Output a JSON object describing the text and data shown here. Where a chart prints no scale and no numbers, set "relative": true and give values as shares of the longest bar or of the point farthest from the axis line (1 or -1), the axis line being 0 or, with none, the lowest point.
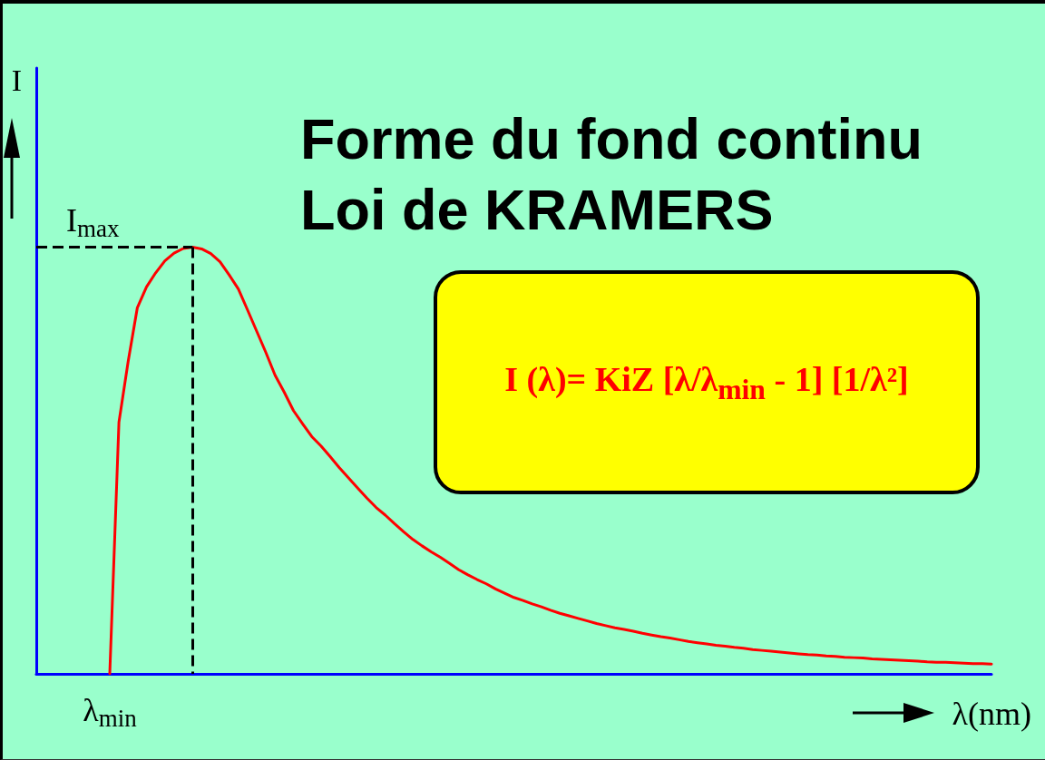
{
  "chart_data": {
    "type": "line",
    "title": "Forme du fond continu",
    "subtitle": "Loi de KRAMERS",
    "xlabel": "λ(nm)",
    "ylabel": "I",
    "relative": true,
    "marker": "none",
    "line_style": "solid",
    "color": "#ff0000",
    "categories": [
      null,
      null,
      null,
      null,
      null,
      null,
      null,
      null,
      null,
      null,
      null,
      null,
      null,
      null,
      null,
      null,
      null,
      null,
      null,
      null,
      null,
      null,
      null,
      null,
      null,
      null,
      null,
      null,
      null,
      null,
      null,
      null,
      null,
      null,
      null,
      null,
      null,
      null,
      null,
      null,
      null,
      null,
      null,
      null,
      null,
      null,
      null,
      null,
      null,
      null,
      null,
      null,
      null,
      null,
      null,
      null,
      null,
      null,
      null,
      null,
      null,
      null,
      null,
      null,
      null,
      null,
      null,
      null,
      null,
      null,
      null,
      null,
      null,
      null,
      null,
      null,
      null,
      null,
      null,
      null,
      null,
      null,
      null,
      null,
      null,
      null,
      null,
      null,
      null,
      null,
      null,
      null,
      null,
      null,
      null,
      null,
      null,
      null,
      null,
      null,
      null,
      null,
      null,
      null,
      null
    ],
    "values": [
      null,
      null,
      null,
      null,
      null,
      null,
      null,
      null,
      0,
      0.59,
      0.732,
      0.858,
      0.907,
      0.94,
      0.968,
      0.986,
      0.997,
      1,
      0.996,
      0.985,
      0.966,
      0.935,
      0.902,
      0.853,
      0.803,
      0.753,
      0.7,
      0.66,
      0.617,
      0.586,
      0.556,
      0.534,
      0.509,
      0.483,
      0.459,
      0.435,
      0.412,
      0.39,
      0.372,
      0.352,
      0.333,
      0.315,
      0.3,
      0.286,
      0.273,
      0.259,
      0.244,
      0.232,
      0.221,
      0.211,
      0.199,
      0.189,
      0.179,
      0.172,
      0.164,
      0.157,
      0.149,
      0.142,
      0.136,
      0.13,
      0.124,
      0.118,
      0.113,
      0.108,
      0.104,
      0.1,
      0.095,
      0.091,
      0.087,
      0.084,
      0.08,
      0.076,
      0.073,
      0.07,
      0.067,
      0.065,
      0.062,
      0.06,
      0.057,
      0.055,
      0.053,
      0.051,
      0.049,
      0.047,
      0.045,
      0.044,
      0.042,
      0.041,
      0.039,
      0.038,
      0.037,
      0.035,
      0.034,
      0.033,
      0.032,
      0.031,
      0.03,
      0.028,
      0.027,
      0.027,
      0.026,
      0.025,
      0.024,
      0.024,
      0.023
    ],
    "ref_lines": [
      {
        "axis": "y",
        "value": 1,
        "label": "I$_{max}$",
        "color": "#000000",
        "line_style": "dashed"
      }
    ],
    "annotations": [
      "I (λ)= KiZ [λ/λ$_{min}$ - 1] [1/λ²]",
      {
        "text": "λ$_{min}$",
        "y": 0
      }
    ]
  }
}
